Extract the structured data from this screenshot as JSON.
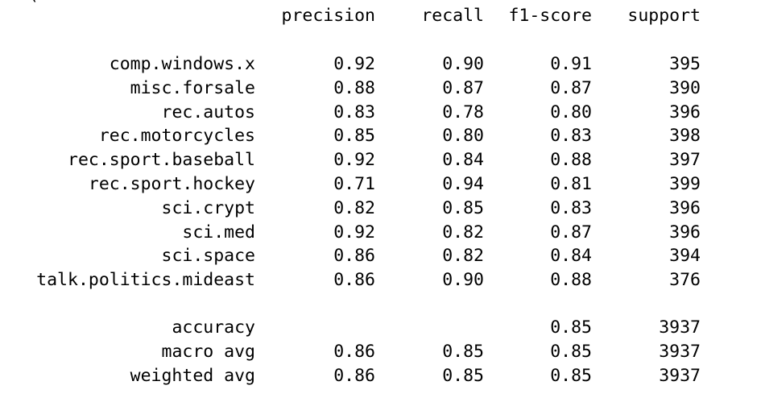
{
  "clipped_line": "(...",
  "columns": {
    "precision": "precision",
    "recall": "recall",
    "f1": "f1-score",
    "support": "support"
  },
  "classes": [
    {
      "label": "comp.windows.x",
      "precision": "0.92",
      "recall": "0.90",
      "f1": "0.91",
      "support": "395"
    },
    {
      "label": "misc.forsale",
      "precision": "0.88",
      "recall": "0.87",
      "f1": "0.87",
      "support": "390"
    },
    {
      "label": "rec.autos",
      "precision": "0.83",
      "recall": "0.78",
      "f1": "0.80",
      "support": "396"
    },
    {
      "label": "rec.motorcycles",
      "precision": "0.85",
      "recall": "0.80",
      "f1": "0.83",
      "support": "398"
    },
    {
      "label": "rec.sport.baseball",
      "precision": "0.92",
      "recall": "0.84",
      "f1": "0.88",
      "support": "397"
    },
    {
      "label": "rec.sport.hockey",
      "precision": "0.71",
      "recall": "0.94",
      "f1": "0.81",
      "support": "399"
    },
    {
      "label": "sci.crypt",
      "precision": "0.82",
      "recall": "0.85",
      "f1": "0.83",
      "support": "396"
    },
    {
      "label": "sci.med",
      "precision": "0.92",
      "recall": "0.82",
      "f1": "0.87",
      "support": "396"
    },
    {
      "label": "sci.space",
      "precision": "0.86",
      "recall": "0.82",
      "f1": "0.84",
      "support": "394"
    },
    {
      "label": "talk.politics.mideast",
      "precision": "0.86",
      "recall": "0.90",
      "f1": "0.88",
      "support": "376"
    }
  ],
  "summary": [
    {
      "label": "accuracy",
      "precision": "",
      "recall": "",
      "f1": "0.85",
      "support": "3937"
    },
    {
      "label": "macro avg",
      "precision": "0.86",
      "recall": "0.85",
      "f1": "0.85",
      "support": "3937"
    },
    {
      "label": "weighted avg",
      "precision": "0.86",
      "recall": "0.85",
      "f1": "0.85",
      "support": "3937"
    }
  ]
}
